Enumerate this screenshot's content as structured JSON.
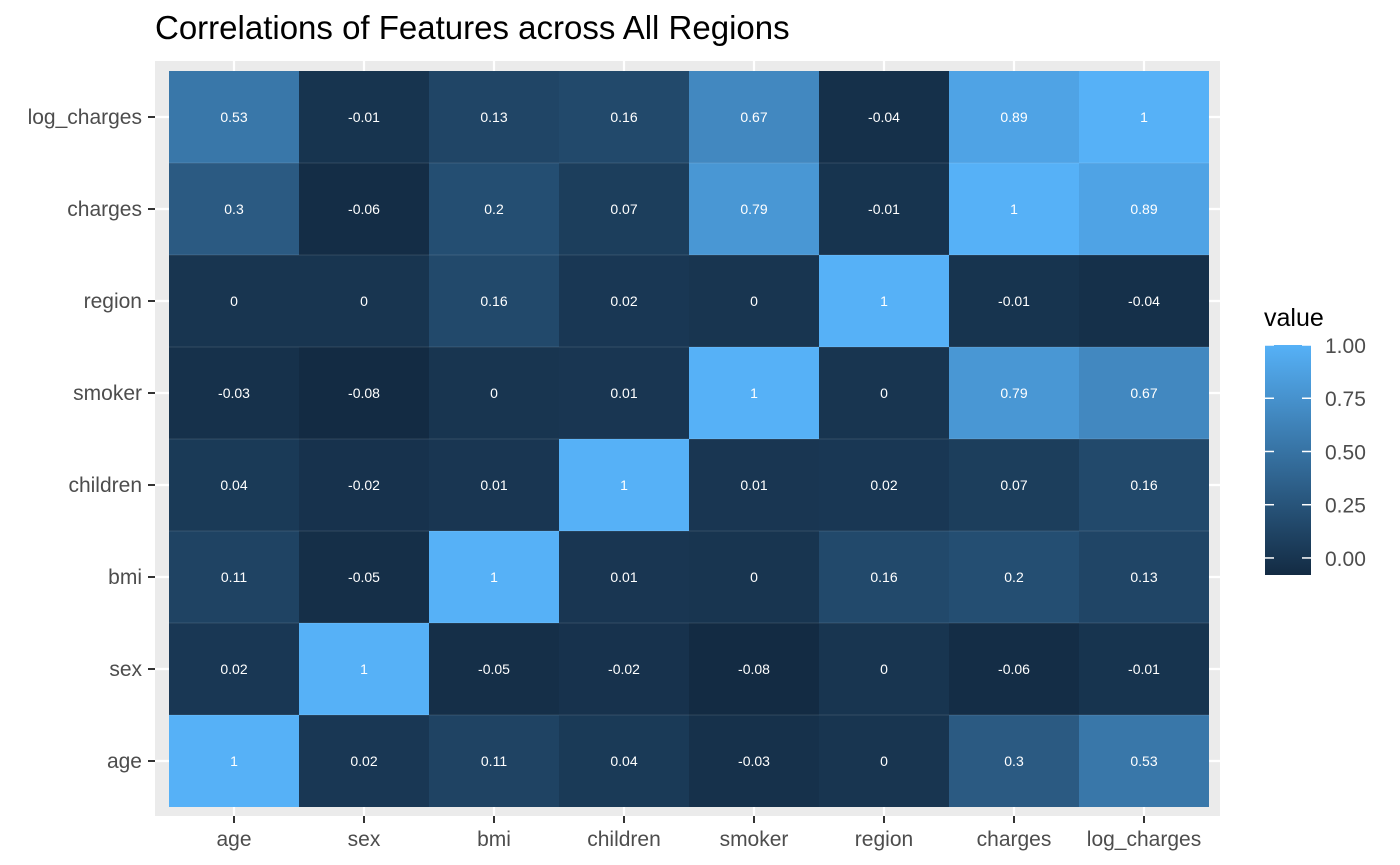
{
  "chart_data": {
    "type": "heatmap",
    "title": "Correlations of Features across All Regions",
    "xlabel": "",
    "ylabel": "",
    "x_categories": [
      "age",
      "sex",
      "bmi",
      "children",
      "smoker",
      "region",
      "charges",
      "log_charges"
    ],
    "y_categories": [
      "age",
      "sex",
      "bmi",
      "children",
      "smoker",
      "region",
      "charges",
      "log_charges"
    ],
    "values": [
      [
        1,
        0.02,
        0.11,
        0.04,
        -0.03,
        0,
        0.3,
        0.53
      ],
      [
        0.02,
        1,
        -0.05,
        -0.02,
        -0.08,
        0,
        -0.06,
        -0.01
      ],
      [
        0.11,
        -0.05,
        1,
        0.01,
        0,
        0.16,
        0.2,
        0.13
      ],
      [
        0.04,
        -0.02,
        0.01,
        1,
        0.01,
        0.02,
        0.07,
        0.16
      ],
      [
        -0.03,
        -0.08,
        0,
        0.01,
        1,
        0,
        0.79,
        0.67
      ],
      [
        0,
        0,
        0.16,
        0.02,
        0,
        1,
        -0.01,
        -0.04
      ],
      [
        0.3,
        -0.06,
        0.2,
        0.07,
        0.79,
        -0.01,
        1,
        0.89
      ],
      [
        0.53,
        -0.01,
        0.13,
        0.16,
        0.67,
        -0.04,
        0.89,
        1
      ]
    ],
    "legend": {
      "title": "value",
      "position": "right",
      "ticks": [
        1.0,
        0.75,
        0.5,
        0.25,
        0.0
      ],
      "tick_labels": [
        "1.00",
        "0.75",
        "0.50",
        "0.25",
        "0.00"
      ],
      "range": [
        -0.08,
        1.0
      ]
    },
    "colors": {
      "low": "#132B43",
      "high": "#56B1F7",
      "panel_background": "#EBEBEB",
      "cell_label": "#FFFFFF"
    },
    "grid": true
  }
}
